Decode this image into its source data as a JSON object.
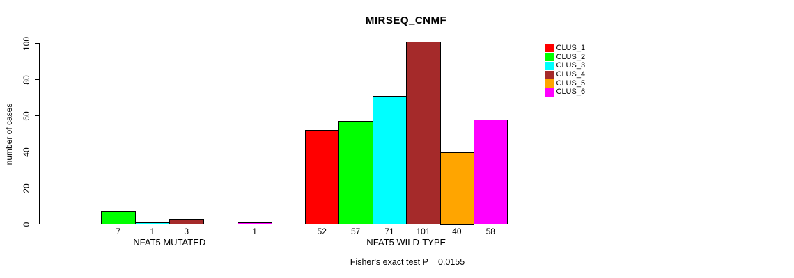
{
  "chart_data": {
    "type": "bar",
    "title": "MIRSEQ_CNMF",
    "ylabel": "number of cases",
    "xlabel": "",
    "ylim": [
      0,
      100
    ],
    "yticks": [
      0,
      20,
      40,
      60,
      80,
      100
    ],
    "grid": false,
    "legend_position": "right-outside",
    "annotation": "Fisher's exact test P = 0.0155",
    "series": [
      {
        "name": "CLUS_1",
        "color": "#FF0000"
      },
      {
        "name": "CLUS_2",
        "color": "#00FF00"
      },
      {
        "name": "CLUS_3",
        "color": "#00FFFF"
      },
      {
        "name": "CLUS_4",
        "color": "#A52A2A"
      },
      {
        "name": "CLUS_5",
        "color": "#FFA500"
      },
      {
        "name": "CLUS_6",
        "color": "#FF00FF"
      }
    ],
    "groups": [
      {
        "label": "NFAT5 MUTATED",
        "values": [
          0,
          7,
          1,
          3,
          0,
          1
        ],
        "bar_labels": [
          "",
          "7",
          "1",
          "3",
          "",
          "1"
        ]
      },
      {
        "label": "NFAT5 WILD-TYPE",
        "values": [
          52,
          57,
          71,
          101,
          40,
          58
        ],
        "bar_labels": [
          "52",
          "57",
          "71",
          "101",
          "40",
          "58"
        ]
      }
    ]
  }
}
